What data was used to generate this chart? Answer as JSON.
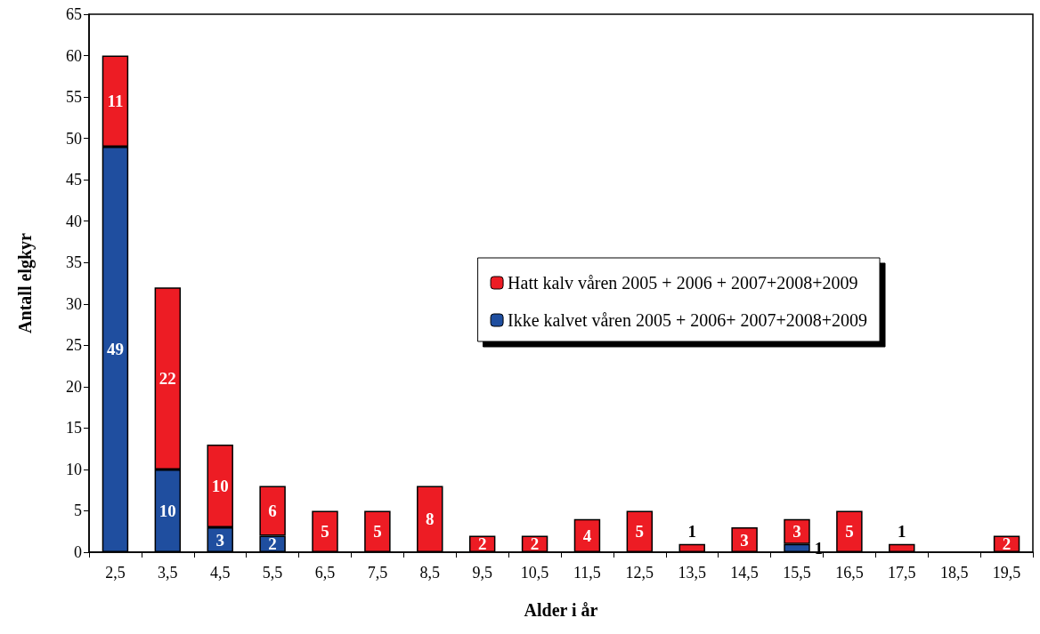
{
  "chart_data": {
    "type": "bar",
    "stacked": true,
    "xlabel": "Alder i år",
    "ylabel": "Antall elgkyr",
    "categories": [
      "2,5",
      "3,5",
      "4,5",
      "5,5",
      "6,5",
      "7,5",
      "8,5",
      "9,5",
      "10,5",
      "11,5",
      "12,5",
      "13,5",
      "14,5",
      "15,5",
      "16,5",
      "17,5",
      "18,5",
      "19,5"
    ],
    "series": [
      {
        "name": "Ikke kalvet våren 2005 + 2006+ 2007+2008+2009",
        "color": "#1f4e9f",
        "values": [
          49,
          10,
          3,
          2,
          0,
          0,
          0,
          0,
          0,
          0,
          0,
          0,
          0,
          1,
          0,
          0,
          0,
          0
        ],
        "value_labels": [
          "49",
          "10",
          "3",
          "2",
          null,
          null,
          null,
          null,
          null,
          null,
          null,
          null,
          null,
          "1",
          null,
          null,
          null,
          null
        ]
      },
      {
        "name": "Hatt kalv våren 2005 + 2006 + 2007+2008+2009",
        "color": "#ed1c24",
        "values": [
          11,
          22,
          10,
          6,
          5,
          5,
          8,
          2,
          2,
          4,
          5,
          1,
          3,
          3,
          5,
          1,
          0,
          2
        ],
        "value_labels": [
          "11",
          "22",
          "10",
          "6",
          "5",
          "5",
          "8",
          "2",
          "2",
          "4",
          "5",
          "1",
          "3",
          "3",
          "5",
          "1",
          null,
          "2"
        ]
      }
    ],
    "ylim": [
      0,
      65
    ],
    "yticks": [
      0,
      5,
      10,
      15,
      20,
      25,
      30,
      35,
      40,
      45,
      50,
      55,
      60,
      65
    ],
    "grid": false,
    "legend": "right"
  }
}
